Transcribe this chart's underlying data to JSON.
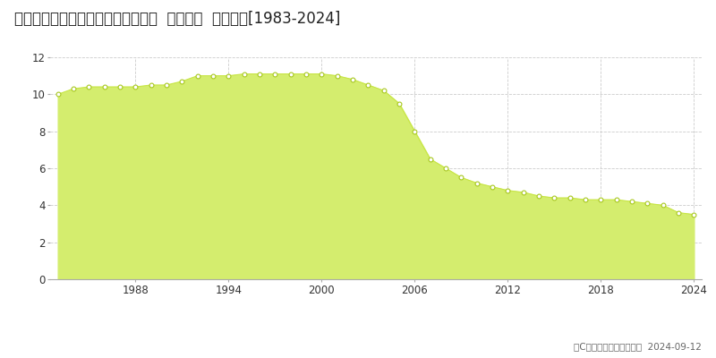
{
  "title": "北海道小樽市赤岩１丁目２７番２外  地価公示  地価推移[1983-2024]",
  "years": [
    1983,
    1984,
    1985,
    1986,
    1987,
    1988,
    1989,
    1990,
    1991,
    1992,
    1993,
    1994,
    1995,
    1996,
    1997,
    1998,
    1999,
    2000,
    2001,
    2002,
    2003,
    2004,
    2005,
    2006,
    2007,
    2008,
    2009,
    2010,
    2011,
    2012,
    2013,
    2014,
    2015,
    2016,
    2017,
    2018,
    2019,
    2020,
    2021,
    2022,
    2023,
    2024
  ],
  "values": [
    10.0,
    10.3,
    10.4,
    10.4,
    10.4,
    10.4,
    10.5,
    10.5,
    10.7,
    11.0,
    11.0,
    11.0,
    11.1,
    11.1,
    11.1,
    11.1,
    11.1,
    11.1,
    11.0,
    10.8,
    10.5,
    10.2,
    9.5,
    8.0,
    6.5,
    6.0,
    5.5,
    5.2,
    5.0,
    4.8,
    4.7,
    4.5,
    4.4,
    4.4,
    4.3,
    4.3,
    4.3,
    4.2,
    4.1,
    4.0,
    3.6,
    3.5
  ],
  "line_color": "#c8e645",
  "fill_color": "#d4ed6e",
  "marker_color": "#ffffff",
  "marker_edge_color": "#a8c820",
  "ylim": [
    0,
    12
  ],
  "yticks": [
    0,
    2,
    4,
    6,
    8,
    10,
    12
  ],
  "xticks": [
    1988,
    1994,
    2000,
    2006,
    2012,
    2018,
    2024
  ],
  "background_color": "#ffffff",
  "plot_bg_color": "#ffffff",
  "grid_color": "#cccccc",
  "copyright_text": "（C）土地価格ドットコム  2024-09-12",
  "title_fontsize": 12,
  "tick_fontsize": 8.5,
  "legend_fontsize": 9
}
